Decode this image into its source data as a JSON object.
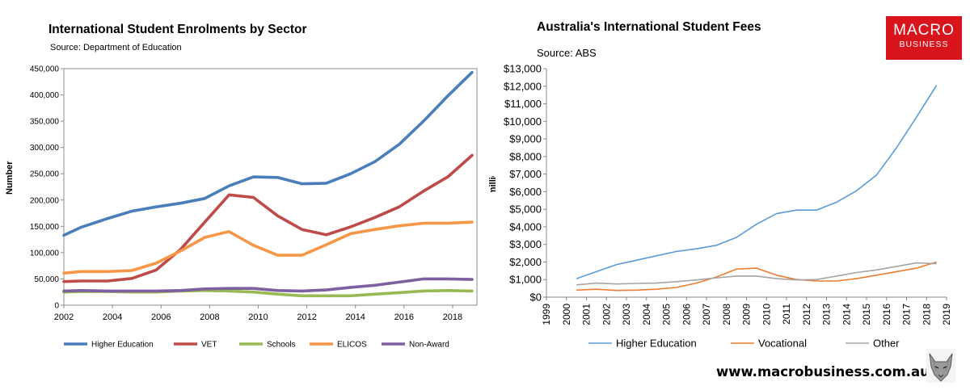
{
  "chart_data": [
    {
      "type": "line",
      "title": "International Student Enrolments by Sector",
      "subtitle": "Source: Department of Education",
      "ylabel": "Number",
      "xlabel": "",
      "xlim": [
        2002,
        2019
      ],
      "ylim": [
        0,
        450000
      ],
      "x_ticks": [
        2002,
        2004,
        2006,
        2008,
        2010,
        2012,
        2014,
        2016,
        2018
      ],
      "y_ticks": [
        0,
        50000,
        100000,
        150000,
        200000,
        250000,
        300000,
        350000,
        400000,
        450000
      ],
      "y_tick_labels": [
        "0",
        "50,000",
        "100,000",
        "150,000",
        "200,000",
        "250,000",
        "300,000",
        "350,000",
        "400,000",
        "450,000"
      ],
      "legend_position": "bottom",
      "x": [
        2002,
        2002.7,
        2003.8,
        2004.8,
        2005.8,
        2006.8,
        2007.8,
        2008.8,
        2009.8,
        2010.8,
        2011.8,
        2012.8,
        2013.8,
        2014.8,
        2015.8,
        2016.8,
        2017.8,
        2018.8
      ],
      "series": [
        {
          "name": "Higher Education",
          "color": "#4a7ebb",
          "values": [
            133000,
            148000,
            165000,
            179000,
            187000,
            194000,
            203000,
            227000,
            244000,
            243000,
            231000,
            232000,
            250000,
            273000,
            306000,
            350000,
            398000,
            443000
          ]
        },
        {
          "name": "VET",
          "color": "#be4b48",
          "values": [
            45000,
            46000,
            46000,
            51000,
            67000,
            106000,
            158000,
            210000,
            205000,
            170000,
            144000,
            134000,
            149000,
            167000,
            187000,
            217000,
            244000,
            285000
          ]
        },
        {
          "name": "Schools",
          "color": "#98b954",
          "values": [
            25000,
            26000,
            26000,
            25000,
            25000,
            27000,
            28000,
            27000,
            25000,
            21000,
            18000,
            18000,
            18000,
            21000,
            24000,
            27000,
            28000,
            27000
          ]
        },
        {
          "name": "ELICOS",
          "color": "#f79646",
          "values": [
            61000,
            64000,
            64000,
            66000,
            80000,
            103000,
            129000,
            140000,
            114000,
            95000,
            95000,
            115000,
            136000,
            144000,
            151000,
            156000,
            156000,
            158000
          ]
        },
        {
          "name": "Non-Award",
          "color": "#7d60a0",
          "values": [
            27000,
            28000,
            27000,
            27000,
            27000,
            28000,
            31000,
            32000,
            32000,
            28000,
            27000,
            29000,
            34000,
            38000,
            44000,
            50000,
            50000,
            49000
          ]
        }
      ]
    },
    {
      "type": "line",
      "title": "Australia's International Student Fees",
      "subtitle": "Source: ABS",
      "ylabel_partial": "$ millions",
      "xlabel": "",
      "xlim": [
        1999,
        2019
      ],
      "ylim": [
        0,
        13000
      ],
      "x_ticks": [
        1999,
        2000,
        2001,
        2002,
        2003,
        2004,
        2005,
        2006,
        2007,
        2008,
        2009,
        2010,
        2011,
        2012,
        2013,
        2014,
        2015,
        2016,
        2017,
        2018,
        2019
      ],
      "y_ticks": [
        0,
        1000,
        2000,
        3000,
        4000,
        5000,
        6000,
        7000,
        8000,
        9000,
        10000,
        11000,
        12000,
        13000
      ],
      "y_tick_labels": [
        "$0",
        "$1,000",
        "$2,000",
        "$3,000",
        "$4,000",
        "$5,000",
        "$6,000",
        "$7,000",
        "$8,000",
        "$9,000",
        "$10,000",
        "$11,000",
        "$12,000",
        "$13,000"
      ],
      "legend_position": "bottom",
      "x": [
        2000.5,
        2001.5,
        2002.5,
        2003.5,
        2004.5,
        2005.5,
        2006.5,
        2007.5,
        2008.5,
        2009.5,
        2010.5,
        2011.5,
        2012.5,
        2013.5,
        2014.5,
        2015.5,
        2016.5,
        2017.5,
        2018.5
      ],
      "series": [
        {
          "name": "Higher Education",
          "color": "#5b9bd5",
          "values": [
            1050,
            1450,
            1850,
            2100,
            2350,
            2600,
            2750,
            2950,
            3400,
            4150,
            4750,
            4950,
            4950,
            5400,
            6050,
            6950,
            8500,
            10250,
            12050
          ]
        },
        {
          "name": "Vocational",
          "color": "#ed7d31",
          "values": [
            400,
            450,
            380,
            400,
            450,
            550,
            800,
            1150,
            1600,
            1650,
            1250,
            1000,
            920,
            920,
            1050,
            1250,
            1450,
            1650,
            2000
          ]
        },
        {
          "name": "Other",
          "color": "#a5a5a5",
          "values": [
            700,
            800,
            750,
            780,
            800,
            880,
            980,
            1100,
            1200,
            1200,
            1050,
            980,
            1000,
            1200,
            1400,
            1550,
            1750,
            1950,
            1900
          ]
        }
      ]
    }
  ],
  "branding": {
    "logo_line1": "MACRO",
    "logo_line2": "BUSINESS",
    "website": "www.macrobusiness.com.au",
    "mascot_icon": "wolf-icon",
    "brand_color": "#d8151c"
  }
}
